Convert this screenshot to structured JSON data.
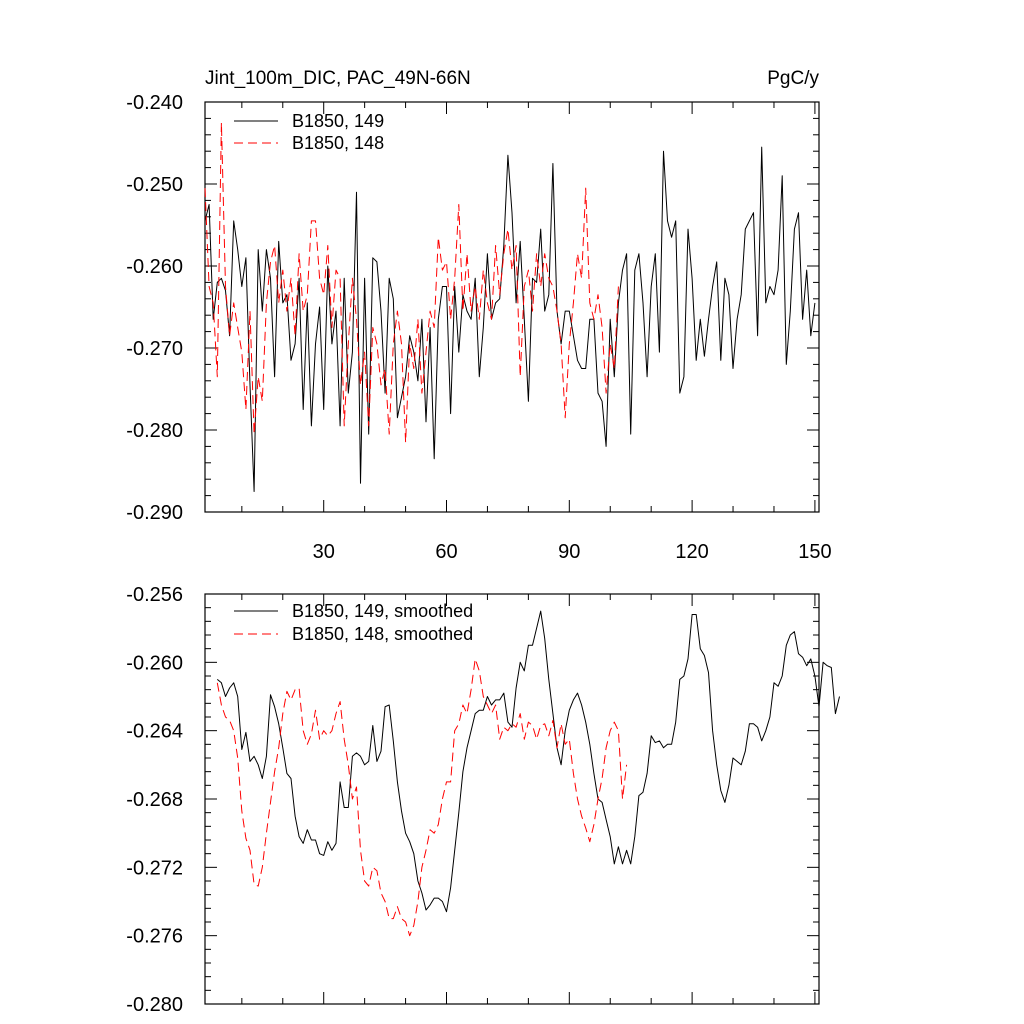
{
  "chart_data": [
    {
      "type": "line",
      "title": "Jint_100m_DIC, PAC_49N-66N",
      "units": "PgC/y",
      "ylim": [
        -0.29,
        -0.24
      ],
      "yticks": [
        "-0.240",
        "-0.250",
        "-0.260",
        "-0.270",
        "-0.280",
        "-0.290"
      ],
      "xlim": [
        1,
        151
      ],
      "xticks": [
        "30",
        "60",
        "90",
        "120",
        "150"
      ],
      "legend_placement": "top-left",
      "series": [
        {
          "name": "B1850, 149",
          "color": "#000000",
          "dash": "solid",
          "x_start": 1,
          "values": [
            -0.2545,
            -0.2525,
            -0.2665,
            -0.262,
            -0.2615,
            -0.263,
            -0.2685,
            -0.2545,
            -0.258,
            -0.2625,
            -0.259,
            -0.2745,
            -0.2875,
            -0.258,
            -0.2655,
            -0.258,
            -0.2615,
            -0.2735,
            -0.257,
            -0.2645,
            -0.2635,
            -0.2715,
            -0.2695,
            -0.2615,
            -0.2775,
            -0.2645,
            -0.2795,
            -0.2695,
            -0.265,
            -0.2775,
            -0.26,
            -0.2695,
            -0.2655,
            -0.2795,
            -0.2615,
            -0.2755,
            -0.2705,
            -0.251,
            -0.2865,
            -0.2615,
            -0.2805,
            -0.259,
            -0.2595,
            -0.2655,
            -0.2755,
            -0.2615,
            -0.264,
            -0.2785,
            -0.276,
            -0.2735,
            -0.2685,
            -0.2705,
            -0.274,
            -0.2665,
            -0.279,
            -0.2675,
            -0.2835,
            -0.2665,
            -0.2625,
            -0.2625,
            -0.278,
            -0.2625,
            -0.2705,
            -0.2635,
            -0.2655,
            -0.2665,
            -0.2615,
            -0.2735,
            -0.2675,
            -0.2585,
            -0.2665,
            -0.2645,
            -0.264,
            -0.2575,
            -0.2465,
            -0.2535,
            -0.2645,
            -0.257,
            -0.2665,
            -0.2765,
            -0.2615,
            -0.262,
            -0.2555,
            -0.2655,
            -0.2635,
            -0.2475,
            -0.2655,
            -0.2695,
            -0.2655,
            -0.2655,
            -0.2685,
            -0.2715,
            -0.2725,
            -0.2725,
            -0.2665,
            -0.2665,
            -0.2755,
            -0.2765,
            -0.282,
            -0.2665,
            -0.2735,
            -0.2645,
            -0.2605,
            -0.2585,
            -0.2805,
            -0.2605,
            -0.2585,
            -0.2645,
            -0.2735,
            -0.2625,
            -0.2585,
            -0.2705,
            -0.246,
            -0.2545,
            -0.2565,
            -0.2545,
            -0.2755,
            -0.2735,
            -0.2555,
            -0.2615,
            -0.2715,
            -0.2665,
            -0.271,
            -0.2665,
            -0.2625,
            -0.2595,
            -0.2715,
            -0.2615,
            -0.2635,
            -0.2725,
            -0.2665,
            -0.2635,
            -0.2555,
            -0.2545,
            -0.2535,
            -0.2685,
            -0.2455,
            -0.2645,
            -0.2625,
            -0.2635,
            -0.2605,
            -0.249,
            -0.272,
            -0.2655,
            -0.2555,
            -0.2535,
            -0.2665,
            -0.2605,
            -0.2685,
            -0.2645
          ]
        },
        {
          "name": "B1850, 148",
          "color": "#ff0000",
          "dash": "dashed",
          "x_start": 1,
          "values": [
            -0.2505,
            -0.2625,
            -0.2645,
            -0.2735,
            -0.2425,
            -0.2625,
            -0.2685,
            -0.2645,
            -0.2675,
            -0.2705,
            -0.2775,
            -0.2655,
            -0.2805,
            -0.2735,
            -0.2765,
            -0.2645,
            -0.2595,
            -0.2575,
            -0.2645,
            -0.2605,
            -0.2655,
            -0.2615,
            -0.2685,
            -0.2585,
            -0.2655,
            -0.2635,
            -0.2545,
            -0.2545,
            -0.2615,
            -0.2635,
            -0.2575,
            -0.2675,
            -0.2605,
            -0.2615,
            -0.2795,
            -0.2695,
            -0.2615,
            -0.2665,
            -0.2745,
            -0.2705,
            -0.2795,
            -0.2675,
            -0.2695,
            -0.2745,
            -0.2725,
            -0.2805,
            -0.2695,
            -0.2655,
            -0.2695,
            -0.2815,
            -0.2695,
            -0.2725,
            -0.2665,
            -0.2755,
            -0.2705,
            -0.2655,
            -0.2675,
            -0.2565,
            -0.2605,
            -0.2595,
            -0.2665,
            -0.2615,
            -0.2525,
            -0.2655,
            -0.2585,
            -0.2655,
            -0.2625,
            -0.2665,
            -0.2605,
            -0.2645,
            -0.2665,
            -0.2575,
            -0.2635,
            -0.2585,
            -0.2555,
            -0.2605,
            -0.2575,
            -0.2735,
            -0.2625,
            -0.2605,
            -0.2655,
            -0.2585,
            -0.2625,
            -0.2585,
            -0.2615,
            -0.2625,
            -0.2655,
            -0.2695,
            -0.2785,
            -0.2695,
            -0.2645,
            -0.2585,
            -0.2615,
            -0.2505,
            -0.2645,
            -0.2665,
            -0.2635,
            -0.2675,
            -0.2755,
            -0.2695,
            -0.2725,
            -0.2625
          ]
        }
      ]
    },
    {
      "type": "line",
      "ylim": [
        -0.28,
        -0.256
      ],
      "yticks": [
        "-0.256",
        "-0.260",
        "-0.264",
        "-0.268",
        "-0.272",
        "-0.276",
        "-0.280"
      ],
      "xlim": [
        1,
        151
      ],
      "legend_placement": "top-left",
      "series": [
        {
          "name": "B1850, 149, smoothed",
          "color": "#000000",
          "dash": "solid",
          "x_start": 4,
          "values": [
            -0.261,
            -0.2612,
            -0.262,
            -0.2615,
            -0.2612,
            -0.262,
            -0.2651,
            -0.2641,
            -0.2658,
            -0.2655,
            -0.266,
            -0.2668,
            -0.2655,
            -0.2619,
            -0.2626,
            -0.2636,
            -0.265,
            -0.2665,
            -0.2668,
            -0.269,
            -0.2702,
            -0.2706,
            -0.2698,
            -0.2704,
            -0.2704,
            -0.2712,
            -0.2713,
            -0.2705,
            -0.271,
            -0.2706,
            -0.267,
            -0.2685,
            -0.2685,
            -0.2655,
            -0.2653,
            -0.2655,
            -0.266,
            -0.2658,
            -0.2637,
            -0.2658,
            -0.2652,
            -0.2626,
            -0.2625,
            -0.2646,
            -0.267,
            -0.2687,
            -0.27,
            -0.2705,
            -0.2712,
            -0.2728,
            -0.2735,
            -0.2745,
            -0.2742,
            -0.2738,
            -0.2738,
            -0.274,
            -0.2746,
            -0.2732,
            -0.271,
            -0.2688,
            -0.2664,
            -0.265,
            -0.264,
            -0.263,
            -0.2628,
            -0.2628,
            -0.262,
            -0.2625,
            -0.2622,
            -0.2622,
            -0.2618,
            -0.2635,
            -0.2638,
            -0.2615,
            -0.26,
            -0.2605,
            -0.259,
            -0.259,
            -0.258,
            -0.257,
            -0.2586,
            -0.261,
            -0.263,
            -0.265,
            -0.266,
            -0.264,
            -0.2628,
            -0.2622,
            -0.2618,
            -0.2625,
            -0.2635,
            -0.2648,
            -0.2665,
            -0.268,
            -0.2682,
            -0.2692,
            -0.2702,
            -0.2718,
            -0.2708,
            -0.2718,
            -0.271,
            -0.2718,
            -0.2702,
            -0.2678,
            -0.2676,
            -0.2665,
            -0.2643,
            -0.2647,
            -0.2646,
            -0.265,
            -0.2648,
            -0.2648,
            -0.2635,
            -0.261,
            -0.2608,
            -0.2598,
            -0.2572,
            -0.2572,
            -0.2592,
            -0.2596,
            -0.2606,
            -0.264,
            -0.266,
            -0.2675,
            -0.2682,
            -0.2672,
            -0.2656,
            -0.2658,
            -0.266,
            -0.2652,
            -0.2636,
            -0.2636,
            -0.2638,
            -0.2646,
            -0.264,
            -0.2632,
            -0.2612,
            -0.2614,
            -0.2608,
            -0.259,
            -0.2584,
            -0.2582,
            -0.2595,
            -0.2597,
            -0.2602,
            -0.2598,
            -0.2608,
            -0.2626,
            -0.26,
            -0.2602,
            -0.2603,
            -0.263,
            -0.262
          ]
        },
        {
          "name": "B1850, 148, smoothed",
          "color": "#ff0000",
          "dash": "dashed",
          "x_start": 4,
          "values": [
            -0.2612,
            -0.2625,
            -0.2632,
            -0.2634,
            -0.264,
            -0.2656,
            -0.2687,
            -0.2703,
            -0.271,
            -0.273,
            -0.2731,
            -0.272,
            -0.27,
            -0.2682,
            -0.2664,
            -0.265,
            -0.263,
            -0.2617,
            -0.2622,
            -0.2616,
            -0.2615,
            -0.264,
            -0.2648,
            -0.2642,
            -0.2628,
            -0.2645,
            -0.264,
            -0.2643,
            -0.264,
            -0.263,
            -0.2623,
            -0.2645,
            -0.266,
            -0.268,
            -0.2673,
            -0.271,
            -0.2728,
            -0.2731,
            -0.272,
            -0.2722,
            -0.2735,
            -0.274,
            -0.275,
            -0.275,
            -0.2743,
            -0.275,
            -0.2752,
            -0.276,
            -0.2754,
            -0.274,
            -0.272,
            -0.271,
            -0.2698,
            -0.27,
            -0.2695,
            -0.268,
            -0.267,
            -0.267,
            -0.264,
            -0.2636,
            -0.2625,
            -0.263,
            -0.2616,
            -0.2598,
            -0.2605,
            -0.262,
            -0.2625,
            -0.263,
            -0.2625,
            -0.2645,
            -0.2638,
            -0.264,
            -0.2636,
            -0.2638,
            -0.263,
            -0.2645,
            -0.2635,
            -0.2637,
            -0.2645,
            -0.2637,
            -0.2636,
            -0.2643,
            -0.2634,
            -0.265,
            -0.2636,
            -0.2648,
            -0.2645,
            -0.2665,
            -0.268,
            -0.269,
            -0.2697,
            -0.2705,
            -0.2695,
            -0.268,
            -0.2668,
            -0.265,
            -0.264,
            -0.2635,
            -0.264,
            -0.268,
            -0.266
          ]
        }
      ]
    }
  ]
}
